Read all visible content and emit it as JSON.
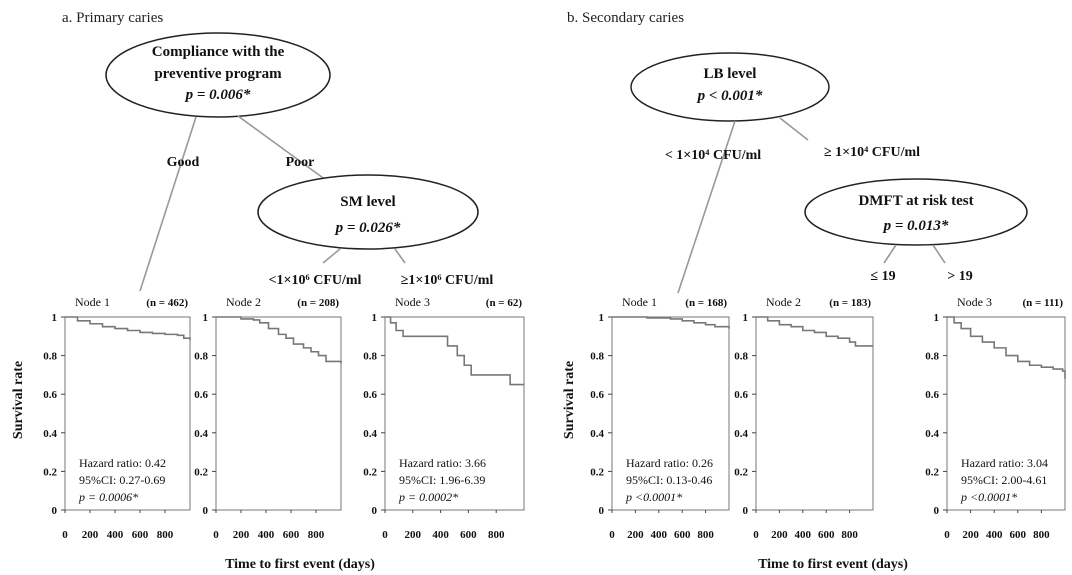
{
  "chart_data": [
    {
      "title": "a. Primary caries",
      "type": "survival-tree",
      "tree": {
        "root": {
          "lines": [
            "Compliance with the",
            "preventive program"
          ],
          "p": "p = 0.006*"
        },
        "branches": [
          "Good",
          "Poor"
        ],
        "child": {
          "lines": [
            "SM level"
          ],
          "p": "p = 0.026*"
        },
        "child_branches": [
          "<1×10⁶ CFU/ml",
          "≥1×10⁶ CFU/ml"
        ]
      },
      "ylabel": "Survival rate",
      "xlabel": "Time to first event (days)",
      "yticks": [
        "1",
        "0.8",
        "0.6",
        "0.4",
        "0.2",
        "0"
      ],
      "xticks": [
        "0",
        "200",
        "400",
        "600",
        "800"
      ],
      "xlim": [
        0,
        1000
      ],
      "ylim": [
        0,
        1
      ],
      "nodes": [
        {
          "label": "Node 1",
          "n": "(n = 462)",
          "stats": [
            "Hazard ratio: 0.42",
            "95%CI: 0.27-0.69",
            "p = 0.0006*"
          ],
          "x": [
            0,
            100,
            200,
            300,
            400,
            500,
            600,
            700,
            800,
            900,
            950,
            1000
          ],
          "y": [
            1,
            0.98,
            0.965,
            0.95,
            0.94,
            0.93,
            0.92,
            0.915,
            0.91,
            0.905,
            0.89,
            0.88
          ]
        },
        {
          "label": "Node 2",
          "n": "(n = 208)",
          "stats": [],
          "x": [
            0,
            200,
            300,
            350,
            420,
            500,
            560,
            620,
            700,
            760,
            820,
            880,
            930,
            1000
          ],
          "y": [
            1,
            0.99,
            0.985,
            0.97,
            0.94,
            0.91,
            0.89,
            0.86,
            0.84,
            0.82,
            0.8,
            0.77,
            0.77,
            0.76
          ]
        },
        {
          "label": "Node 3",
          "n": "(n = 62)",
          "stats": [
            "Hazard ratio: 3.66",
            "95%CI: 1.96-6.39",
            "p = 0.0002*"
          ],
          "x": [
            0,
            40,
            80,
            130,
            350,
            450,
            520,
            570,
            620,
            700,
            850,
            900,
            1000
          ],
          "y": [
            1,
            0.97,
            0.93,
            0.9,
            0.9,
            0.85,
            0.8,
            0.75,
            0.7,
            0.7,
            0.7,
            0.65,
            0.65
          ]
        }
      ]
    },
    {
      "title": "b. Secondary caries",
      "type": "survival-tree",
      "tree": {
        "root": {
          "lines": [
            "LB level"
          ],
          "p": "p < 0.001*"
        },
        "branches": [
          "< 1×10⁴ CFU/ml",
          "≥ 1×10⁴ CFU/ml"
        ],
        "child": {
          "lines": [
            "DMFT at risk test"
          ],
          "p": "p = 0.013*"
        },
        "child_branches": [
          "≤ 19",
          "> 19"
        ]
      },
      "ylabel": "Survival rate",
      "xlabel": "Time to first event (days)",
      "yticks": [
        "1",
        "0.8",
        "0.6",
        "0.4",
        "0.2",
        "0"
      ],
      "xticks": [
        "0",
        "200",
        "400",
        "600",
        "800"
      ],
      "xlim": [
        0,
        1000
      ],
      "ylim": [
        0,
        1
      ],
      "nodes": [
        {
          "label": "Node 1",
          "n": "(n = 168)",
          "stats": [
            "Hazard ratio: 0.26",
            "95%CI: 0.13-0.46",
            "p <0.0001*"
          ],
          "x": [
            0,
            300,
            500,
            600,
            700,
            800,
            880,
            1000
          ],
          "y": [
            1,
            0.995,
            0.99,
            0.98,
            0.97,
            0.96,
            0.95,
            0.94
          ]
        },
        {
          "label": "Node 2",
          "n": "(n = 183)",
          "stats": [],
          "x": [
            0,
            100,
            200,
            300,
            400,
            500,
            600,
            700,
            800,
            850,
            1000
          ],
          "y": [
            1,
            0.98,
            0.96,
            0.95,
            0.93,
            0.92,
            0.9,
            0.89,
            0.87,
            0.85,
            0.85
          ]
        },
        {
          "label": "Node 3",
          "n": "(n = 111)",
          "stats": [
            "Hazard ratio: 3.04",
            "95%CI: 2.00-4.61",
            "p <0.0001*"
          ],
          "x": [
            0,
            60,
            120,
            200,
            300,
            400,
            500,
            600,
            700,
            800,
            900,
            980,
            1000
          ],
          "y": [
            1,
            0.97,
            0.94,
            0.9,
            0.87,
            0.84,
            0.8,
            0.77,
            0.75,
            0.74,
            0.73,
            0.72,
            0.68
          ]
        }
      ]
    }
  ]
}
